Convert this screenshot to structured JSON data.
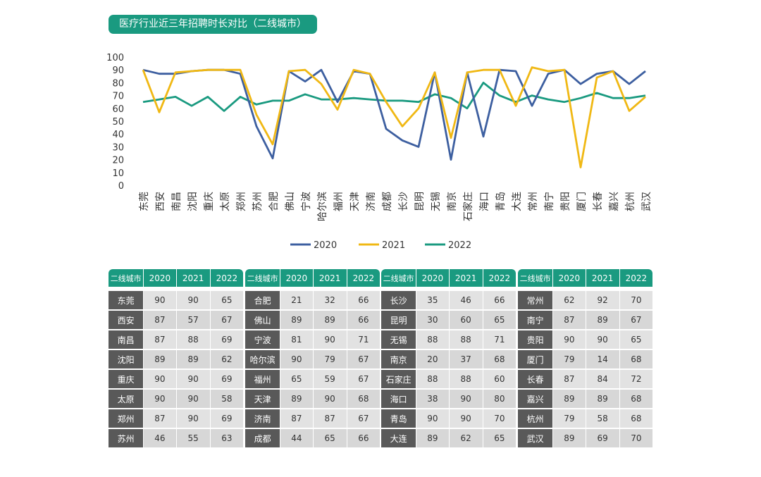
{
  "title": "医疗行业近三年招聘时长对比（二线城市）",
  "colors": {
    "accent": "#1a9a80",
    "row_label": "#595959",
    "s2020": "#3d5fa0",
    "s2021": "#f0b814",
    "s2022": "#1a9a80"
  },
  "chart_data": {
    "type": "line",
    "title": "医疗行业近三年招聘时长对比（二线城市）",
    "categories": [
      "东莞",
      "西安",
      "南昌",
      "沈阳",
      "重庆",
      "太原",
      "郑州",
      "苏州",
      "合肥",
      "佛山",
      "宁波",
      "哈尔滨",
      "福州",
      "天津",
      "济南",
      "成都",
      "长沙",
      "昆明",
      "无锡",
      "南京",
      "石家庄",
      "海口",
      "青岛",
      "大连",
      "常州",
      "南宁",
      "贵阳",
      "厦门",
      "长春",
      "嘉兴",
      "杭州",
      "武汉"
    ],
    "series": [
      {
        "name": "2020",
        "color": "#3d5fa0",
        "values": [
          90,
          87,
          87,
          89,
          90,
          90,
          87,
          46,
          21,
          89,
          81,
          90,
          65,
          89,
          87,
          44,
          35,
          30,
          88,
          20,
          88,
          38,
          90,
          89,
          62,
          87,
          90,
          79,
          87,
          89,
          79,
          89
        ]
      },
      {
        "name": "2021",
        "color": "#f0b814",
        "values": [
          90,
          57,
          88,
          89,
          90,
          90,
          90,
          55,
          32,
          89,
          90,
          79,
          59,
          90,
          87,
          65,
          46,
          60,
          88,
          37,
          88,
          90,
          90,
          62,
          92,
          89,
          90,
          14,
          84,
          89,
          58,
          69
        ]
      },
      {
        "name": "2022",
        "color": "#1a9a80",
        "values": [
          65,
          67,
          69,
          62,
          69,
          58,
          69,
          63,
          66,
          66,
          71,
          67,
          67,
          68,
          67,
          66,
          66,
          65,
          71,
          68,
          60,
          80,
          70,
          65,
          70,
          67,
          65,
          68,
          72,
          68,
          68,
          70
        ]
      }
    ],
    "yticks": [
      "100",
      "90",
      "80",
      "70",
      "60",
      "50",
      "40",
      "30",
      "20",
      "10",
      "0"
    ],
    "ylim": [
      0,
      100
    ],
    "legend": "bottom",
    "grid": false
  },
  "table": {
    "headers": [
      "二线城市",
      "2020",
      "2021",
      "2022"
    ],
    "groups": [
      [
        [
          "东莞",
          "90",
          "90",
          "65"
        ],
        [
          "西安",
          "87",
          "57",
          "67"
        ],
        [
          "南昌",
          "87",
          "88",
          "69"
        ],
        [
          "沈阳",
          "89",
          "89",
          "62"
        ],
        [
          "重庆",
          "90",
          "90",
          "69"
        ],
        [
          "太原",
          "90",
          "90",
          "58"
        ],
        [
          "郑州",
          "87",
          "90",
          "69"
        ],
        [
          "苏州",
          "46",
          "55",
          "63"
        ]
      ],
      [
        [
          "合肥",
          "21",
          "32",
          "66"
        ],
        [
          "佛山",
          "89",
          "89",
          "66"
        ],
        [
          "宁波",
          "81",
          "90",
          "71"
        ],
        [
          "哈尔滨",
          "90",
          "79",
          "67"
        ],
        [
          "福州",
          "65",
          "59",
          "67"
        ],
        [
          "天津",
          "89",
          "90",
          "68"
        ],
        [
          "济南",
          "87",
          "87",
          "67"
        ],
        [
          "成都",
          "44",
          "65",
          "66"
        ]
      ],
      [
        [
          "长沙",
          "35",
          "46",
          "66"
        ],
        [
          "昆明",
          "30",
          "60",
          "65"
        ],
        [
          "无锡",
          "88",
          "88",
          "71"
        ],
        [
          "南京",
          "20",
          "37",
          "68"
        ],
        [
          "石家庄",
          "88",
          "88",
          "60"
        ],
        [
          "海口",
          "38",
          "90",
          "80"
        ],
        [
          "青岛",
          "90",
          "90",
          "70"
        ],
        [
          "大连",
          "89",
          "62",
          "65"
        ]
      ],
      [
        [
          "常州",
          "62",
          "92",
          "70"
        ],
        [
          "南宁",
          "87",
          "89",
          "67"
        ],
        [
          "贵阳",
          "90",
          "90",
          "65"
        ],
        [
          "厦门",
          "79",
          "14",
          "68"
        ],
        [
          "长春",
          "87",
          "84",
          "72"
        ],
        [
          "嘉兴",
          "89",
          "89",
          "68"
        ],
        [
          "杭州",
          "79",
          "58",
          "68"
        ],
        [
          "武汉",
          "89",
          "69",
          "70"
        ]
      ]
    ]
  }
}
